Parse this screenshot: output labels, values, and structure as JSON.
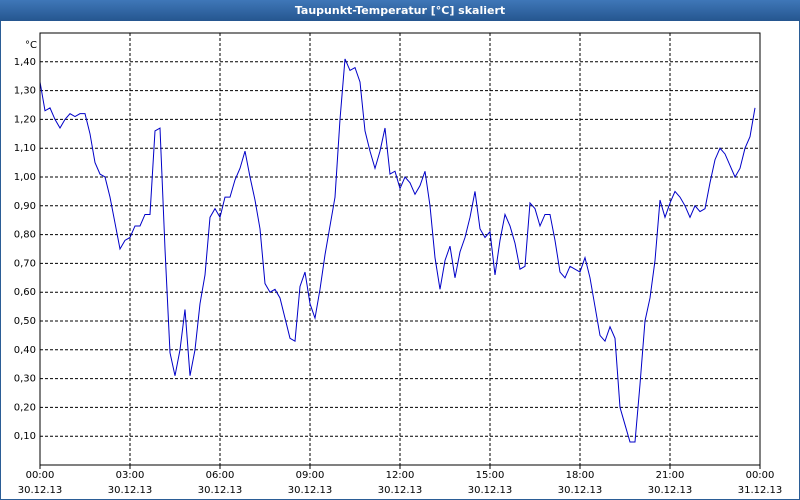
{
  "chart_data": {
    "type": "line",
    "title": "Taupunkt-Temperatur [°C] skaliert",
    "y_unit": "°C",
    "color": "#0000c8",
    "grid": true,
    "xlim": [
      0,
      1440
    ],
    "ylim": [
      0,
      1.5
    ],
    "xticks": [
      {
        "value": 0,
        "label": "00:00"
      },
      {
        "value": 180,
        "label": "03:00"
      },
      {
        "value": 360,
        "label": "06:00"
      },
      {
        "value": 540,
        "label": "09:00"
      },
      {
        "value": 720,
        "label": "12:00"
      },
      {
        "value": 900,
        "label": "15:00"
      },
      {
        "value": 1080,
        "label": "18:00"
      },
      {
        "value": 1260,
        "label": "21:00"
      },
      {
        "value": 1440,
        "label": "00:00"
      }
    ],
    "xtick_dates": [
      "30.12.13",
      "30.12.13",
      "30.12.13",
      "30.12.13",
      "30.12.13",
      "30.12.13",
      "30.12.13",
      "30.12.13",
      "31.12.13"
    ],
    "yticks": [
      {
        "value": 0.1,
        "label": "0,10"
      },
      {
        "value": 0.2,
        "label": "0,20"
      },
      {
        "value": 0.3,
        "label": "0,30"
      },
      {
        "value": 0.4,
        "label": "0,40"
      },
      {
        "value": 0.5,
        "label": "0,50"
      },
      {
        "value": 0.6,
        "label": "0,60"
      },
      {
        "value": 0.7,
        "label": "0,70"
      },
      {
        "value": 0.8,
        "label": "0,80"
      },
      {
        "value": 0.9,
        "label": "0,90"
      },
      {
        "value": 1.0,
        "label": "1,00"
      },
      {
        "value": 1.1,
        "label": "1,10"
      },
      {
        "value": 1.2,
        "label": "1,20"
      },
      {
        "value": 1.3,
        "label": "1,30"
      },
      {
        "value": 1.4,
        "label": "1,40"
      }
    ],
    "x": [
      0,
      10,
      20,
      30,
      40,
      50,
      60,
      70,
      80,
      90,
      100,
      110,
      120,
      130,
      140,
      150,
      160,
      170,
      180,
      190,
      200,
      210,
      220,
      230,
      240,
      250,
      260,
      270,
      280,
      290,
      300,
      310,
      320,
      330,
      340,
      350,
      360,
      370,
      380,
      390,
      400,
      410,
      420,
      430,
      440,
      450,
      460,
      470,
      480,
      490,
      500,
      510,
      520,
      530,
      540,
      550,
      560,
      570,
      580,
      590,
      600,
      610,
      620,
      630,
      640,
      650,
      660,
      670,
      680,
      690,
      700,
      710,
      720,
      730,
      740,
      750,
      760,
      770,
      780,
      790,
      800,
      810,
      820,
      830,
      840,
      850,
      860,
      870,
      880,
      890,
      900,
      910,
      920,
      930,
      940,
      950,
      960,
      970,
      980,
      990,
      1000,
      1010,
      1020,
      1030,
      1040,
      1050,
      1060,
      1070,
      1080,
      1090,
      1100,
      1110,
      1120,
      1130,
      1140,
      1150,
      1160,
      1170,
      1180,
      1190,
      1200,
      1210,
      1220,
      1230,
      1240,
      1250,
      1260,
      1270,
      1280,
      1290,
      1300,
      1310,
      1320,
      1330,
      1340,
      1350,
      1360,
      1370,
      1380,
      1390,
      1400,
      1410,
      1420,
      1430
    ],
    "values": [
      1.33,
      1.23,
      1.24,
      1.2,
      1.17,
      1.2,
      1.22,
      1.21,
      1.22,
      1.22,
      1.15,
      1.05,
      1.01,
      1.0,
      0.93,
      0.84,
      0.75,
      0.78,
      0.79,
      0.83,
      0.83,
      0.87,
      0.87,
      1.16,
      1.17,
      0.75,
      0.39,
      0.31,
      0.4,
      0.54,
      0.31,
      0.4,
      0.56,
      0.66,
      0.86,
      0.89,
      0.86,
      0.93,
      0.93,
      0.99,
      1.03,
      1.09,
      1.0,
      0.92,
      0.82,
      0.63,
      0.6,
      0.61,
      0.58,
      0.51,
      0.44,
      0.43,
      0.62,
      0.67,
      0.56,
      0.51,
      0.61,
      0.73,
      0.83,
      0.93,
      1.2,
      1.41,
      1.37,
      1.38,
      1.33,
      1.16,
      1.09,
      1.03,
      1.09,
      1.17,
      1.01,
      1.02,
      0.96,
      1.0,
      0.98,
      0.94,
      0.97,
      1.02,
      0.9,
      0.72,
      0.61,
      0.71,
      0.76,
      0.65,
      0.74,
      0.79,
      0.86,
      0.95,
      0.82,
      0.79,
      0.81,
      0.66,
      0.78,
      0.87,
      0.83,
      0.77,
      0.68,
      0.69,
      0.91,
      0.89,
      0.83,
      0.87,
      0.87,
      0.78,
      0.67,
      0.65,
      0.69,
      0.68,
      0.67,
      0.72,
      0.65,
      0.55,
      0.45,
      0.43,
      0.48,
      0.44,
      0.2,
      0.14,
      0.08,
      0.08,
      0.28,
      0.5,
      0.58,
      0.71,
      0.92,
      0.86,
      0.91,
      0.95,
      0.93,
      0.9,
      0.86,
      0.9,
      0.88,
      0.89,
      0.98,
      1.06,
      1.1,
      1.08,
      1.04,
      1.0,
      1.03,
      1.1,
      1.14,
      1.24
    ]
  }
}
